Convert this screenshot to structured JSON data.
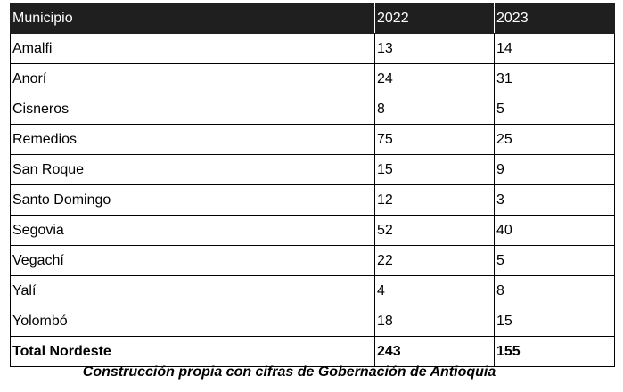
{
  "table": {
    "headers": [
      "Municipio",
      "2022",
      "2023"
    ],
    "rows": [
      [
        "Amalfi",
        "13",
        "14"
      ],
      [
        "Anorí",
        "24",
        "31"
      ],
      [
        "Cisneros",
        "8",
        "5"
      ],
      [
        "Remedios",
        "75",
        "25"
      ],
      [
        "San Roque",
        "15",
        "9"
      ],
      [
        "Santo Domingo",
        "12",
        "3"
      ],
      [
        "Segovia",
        "52",
        "40"
      ],
      [
        "Vegachí",
        "22",
        "5"
      ],
      [
        "Yalí",
        "4",
        "8"
      ],
      [
        "Yolombó",
        "18",
        "15"
      ]
    ],
    "total": [
      "Total Nordeste",
      "243",
      "155"
    ]
  },
  "caption": "Construcción propia con cifras de Gobernación de Antioquia"
}
